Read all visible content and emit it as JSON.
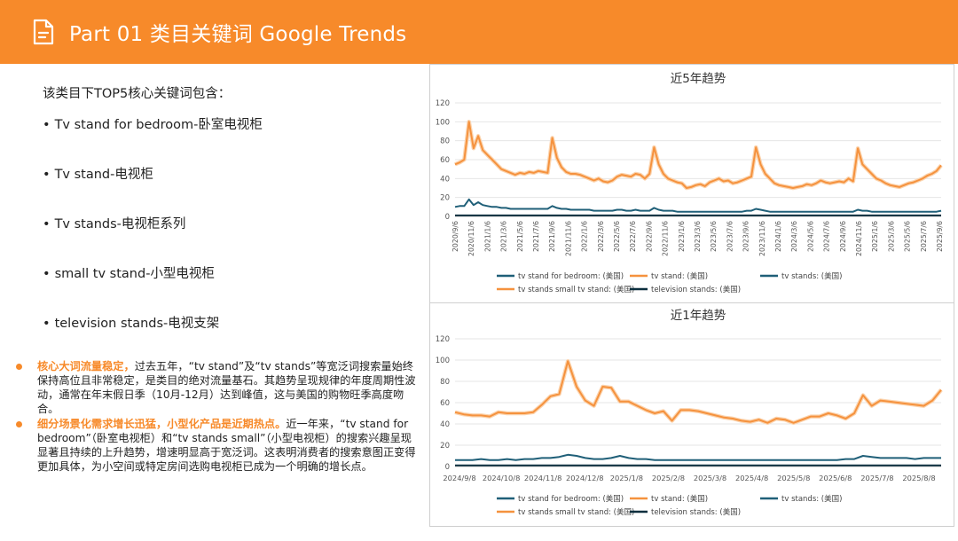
{
  "header": {
    "title": "Part 01 类目关键词 Google Trends",
    "icon": "document-icon",
    "bg_color": "#f78a2a"
  },
  "left": {
    "intro": "该类目下TOP5核心关键词包含：",
    "keywords": [
      "Tv stand for bedroom-卧室电视柜",
      "Tv stand-电视柜",
      "Tv stands-电视柜系列",
      "small tv stand-小型电视柜",
      "television stands-电视支架"
    ],
    "paragraphs": [
      {
        "highlight": "核心大词流量稳定，",
        "text": "过去五年，“tv stand”及“tv stands”等宽泛词搜索量始终保持高位且非常稳定，是类目的绝对流量基石。其趋势呈现规律的年度周期性波动，通常在年末假日季（10月-12月）达到峰值，这与美国的购物旺季高度吻合。"
      },
      {
        "highlight": "细分场景化需求增长迅猛，小型化产品是近期热点。",
        "text": "近一年来，“tv stand for bedroom”（卧室电视柜）和“tv stands small”（小型电视柜）的搜索兴趣呈现显著且持续的上升趋势，增速明显高于宽泛词。这表明消费者的搜索意图正变得更加具体，为小空间或特定房间选购电视柜已成为一个明确的增长点。"
      }
    ]
  },
  "chart_data": [
    {
      "type": "line",
      "title": "近5年趋势",
      "ylim": [
        0,
        120
      ],
      "yticks": [
        "0",
        "20",
        "40",
        "60",
        "80",
        "100",
        "120"
      ],
      "x_ticks": [
        "2020/9/6",
        "2020/11/6",
        "2021/1/6",
        "2021/3/6",
        "2021/5/6",
        "2021/7/6",
        "2021/9/6",
        "2021/11/6",
        "2022/1/6",
        "2022/3/6",
        "2022/5/6",
        "2022/7/6",
        "2022/9/6",
        "2022/11/6",
        "2023/1/6",
        "2023/3/6",
        "2023/5/6",
        "2023/7/6",
        "2023/9/6",
        "2023/11/6",
        "2024/1/6",
        "2024/3/6",
        "2024/5/6",
        "2024/7/6",
        "2024/9/6",
        "2024/11/6",
        "2025/1/6",
        "2025/3/6",
        "2025/5/6",
        "2025/7/6",
        "2025/9/6"
      ],
      "legend": [
        "tv stand for bedroom: (美国)",
        "tv stand: (美国)",
        "tv stands: (美国)",
        "tv stands small tv stand: (美国)",
        "television stands: (美国)"
      ],
      "series": [
        {
          "name": "tv stand: (美国)",
          "color": "#f5923e",
          "values": [
            55,
            57,
            60,
            100,
            72,
            85,
            70,
            65,
            60,
            55,
            50,
            48,
            46,
            44,
            46,
            45,
            47,
            46,
            48,
            47,
            46,
            83,
            62,
            52,
            47,
            45,
            45,
            44,
            42,
            40,
            38,
            40,
            37,
            36,
            38,
            42,
            44,
            43,
            42,
            45,
            44,
            40,
            45,
            73,
            55,
            45,
            40,
            38,
            36,
            35,
            30,
            31,
            33,
            34,
            32,
            36,
            38,
            40,
            37,
            38,
            35,
            36,
            38,
            40,
            42,
            73,
            55,
            45,
            40,
            35,
            33,
            32,
            31,
            30,
            31,
            32,
            34,
            33,
            35,
            38,
            36,
            35,
            36,
            37,
            36,
            40,
            37,
            72,
            55,
            50,
            45,
            40,
            38,
            35,
            33,
            32,
            31,
            33,
            35,
            36,
            38,
            40,
            43,
            45,
            48,
            54
          ]
        },
        {
          "name": "tv stands: (美国)",
          "color": "#1f5f78",
          "values": [
            10,
            11,
            11,
            18,
            12,
            15,
            12,
            11,
            10,
            10,
            9,
            9,
            8,
            8,
            8,
            8,
            8,
            8,
            8,
            8,
            8,
            11,
            9,
            8,
            8,
            7,
            7,
            7,
            7,
            7,
            6,
            6,
            6,
            6,
            6,
            7,
            7,
            6,
            6,
            7,
            6,
            6,
            6,
            9,
            7,
            6,
            6,
            6,
            5,
            5,
            5,
            5,
            5,
            5,
            5,
            5,
            5,
            5,
            5,
            5,
            5,
            5,
            5,
            6,
            6,
            8,
            7,
            6,
            5,
            5,
            5,
            5,
            5,
            5,
            5,
            5,
            5,
            5,
            5,
            5,
            5,
            5,
            5,
            5,
            5,
            5,
            5,
            7,
            6,
            6,
            5,
            5,
            5,
            5,
            5,
            5,
            5,
            5,
            5,
            5,
            5,
            5,
            5,
            5,
            5,
            6
          ]
        },
        {
          "name": "television stands: (美国)",
          "color": "#0b2f3e",
          "values": [
            1,
            1,
            1,
            1,
            1,
            1,
            1,
            1,
            1,
            1,
            1,
            1,
            1,
            1,
            1,
            1,
            1,
            1,
            1,
            1,
            1,
            1,
            1,
            1,
            1,
            1,
            1,
            1,
            1,
            1,
            1,
            1,
            1,
            1,
            1,
            1,
            1,
            1,
            1,
            1,
            1,
            1,
            1,
            1,
            1,
            1,
            1,
            1,
            1,
            1,
            1,
            1,
            1,
            1,
            1,
            1,
            1,
            1,
            1,
            1,
            1,
            1,
            1,
            1,
            1,
            1,
            1,
            1,
            1,
            1,
            1,
            1,
            1,
            1,
            1,
            1,
            1,
            1,
            1,
            1,
            1,
            1,
            1,
            1,
            1,
            1,
            1,
            1,
            1,
            1,
            1,
            1,
            1,
            1,
            1,
            1,
            1,
            1,
            1,
            1,
            1,
            1,
            1,
            1,
            1,
            1
          ]
        }
      ]
    },
    {
      "type": "line",
      "title": "近1年趋势",
      "ylim": [
        0,
        120
      ],
      "yticks": [
        "0",
        "20",
        "40",
        "60",
        "80",
        "100",
        "120"
      ],
      "x_ticks": [
        "2024/9/8",
        "2024/10/8",
        "2024/11/8",
        "2024/12/8",
        "2025/1/8",
        "2025/2/8",
        "2025/3/8",
        "2025/4/8",
        "2025/5/8",
        "2025/6/8",
        "2025/7/8",
        "2025/8/8"
      ],
      "legend": [
        "tv stand for bedroom: (美国)",
        "tv stand: (美国)",
        "tv stands: (美国)",
        "tv stands small tv stand: (美国)",
        "television stands: (美国)"
      ],
      "series": [
        {
          "name": "tv stand: (美国)",
          "color": "#f5923e",
          "values": [
            51,
            49,
            48,
            48,
            47,
            51,
            50,
            50,
            50,
            51,
            58,
            66,
            68,
            99,
            75,
            62,
            57,
            75,
            74,
            61,
            61,
            57,
            53,
            50,
            52,
            43,
            53,
            53,
            52,
            50,
            48,
            46,
            45,
            43,
            42,
            44,
            41,
            45,
            44,
            41,
            44,
            47,
            47,
            50,
            48,
            45,
            50,
            67,
            57,
            62,
            61,
            60,
            59,
            58,
            57,
            62,
            72
          ]
        },
        {
          "name": "tv stands: (美国)",
          "color": "#1f5f78",
          "values": [
            6,
            6,
            6,
            7,
            6,
            6,
            7,
            6,
            7,
            7,
            8,
            8,
            9,
            11,
            10,
            8,
            7,
            7,
            8,
            10,
            8,
            7,
            7,
            6,
            6,
            6,
            6,
            6,
            6,
            6,
            6,
            6,
            6,
            6,
            6,
            6,
            6,
            6,
            6,
            6,
            6,
            6,
            6,
            6,
            6,
            7,
            7,
            10,
            9,
            8,
            8,
            8,
            8,
            7,
            8,
            8,
            8
          ]
        },
        {
          "name": "television stands: (美国)",
          "color": "#0b2f3e",
          "values": [
            1,
            1,
            1,
            1,
            1,
            1,
            1,
            1,
            1,
            1,
            1,
            1,
            1,
            1,
            1,
            1,
            1,
            1,
            1,
            1,
            1,
            1,
            1,
            1,
            1,
            1,
            1,
            1,
            1,
            1,
            1,
            1,
            1,
            1,
            1,
            1,
            1,
            1,
            1,
            1,
            1,
            1,
            1,
            1,
            1,
            1,
            1,
            1,
            1,
            1,
            1,
            1,
            1,
            1,
            1,
            1,
            1
          ]
        }
      ]
    }
  ]
}
